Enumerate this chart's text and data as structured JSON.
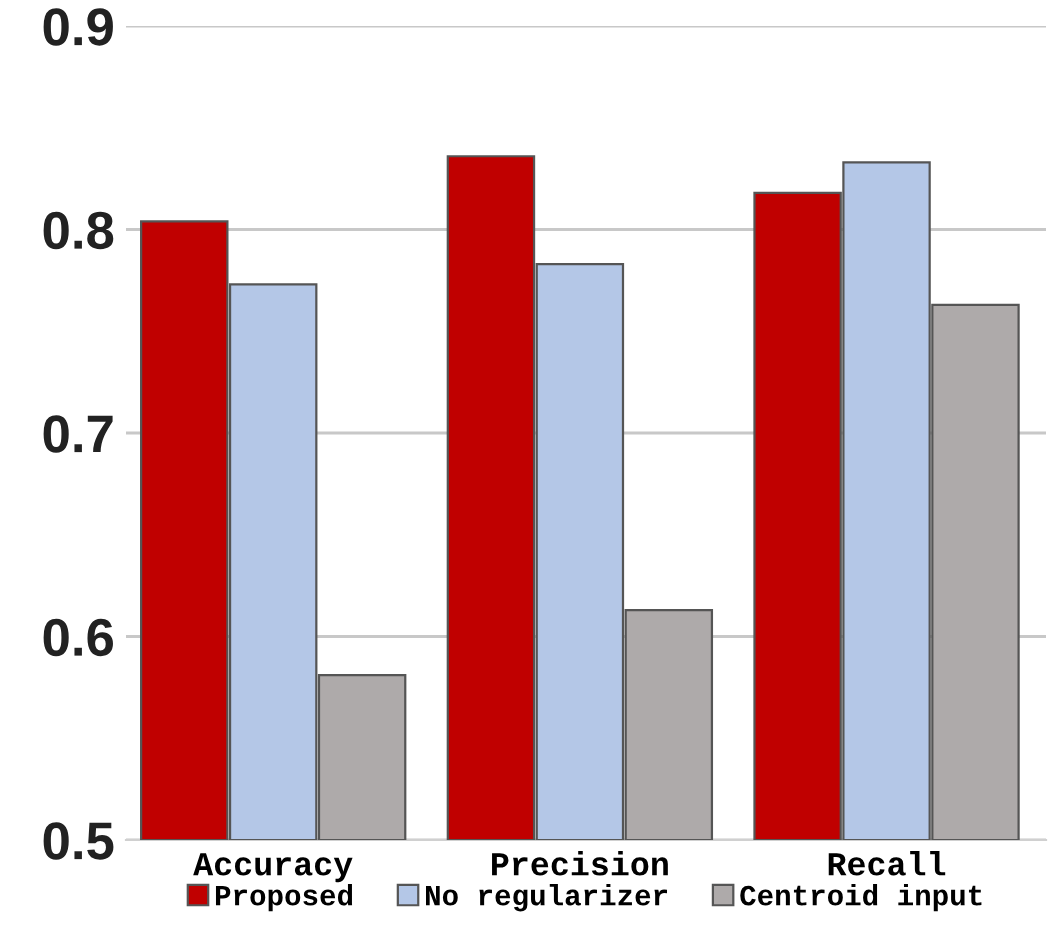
{
  "chart_data": {
    "type": "bar",
    "categories": [
      "Accuracy",
      "Precision",
      "Recall"
    ],
    "series": [
      {
        "name": "Proposed",
        "color": "#c00000",
        "values": [
          0.804,
          0.836,
          0.818
        ]
      },
      {
        "name": "No regularizer",
        "color": "#b4c7e7",
        "values": [
          0.773,
          0.783,
          0.833
        ]
      },
      {
        "name": "Centroid input",
        "color": "#aeaaaa",
        "values": [
          0.581,
          0.613,
          0.763
        ]
      }
    ],
    "ylim": [
      0.5,
      0.9
    ],
    "yticks": [
      0.5,
      0.6,
      0.7,
      0.8,
      0.9
    ],
    "grid": "y",
    "legend": "bottom"
  }
}
